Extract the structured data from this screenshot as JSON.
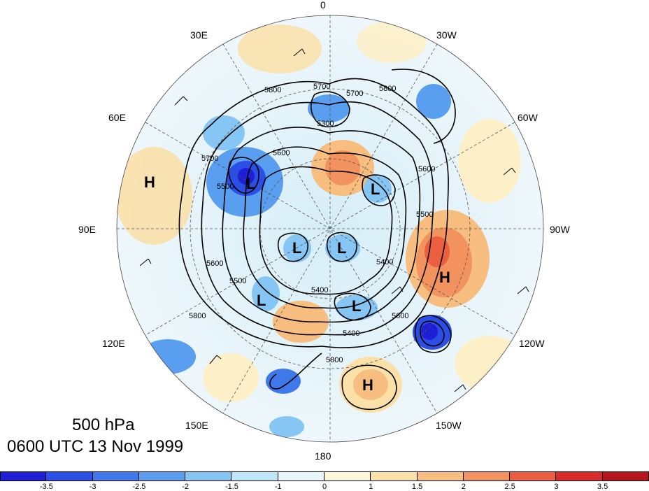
{
  "title": {
    "level": "500 hPa",
    "datetime": "0600 UTC 13 Nov 1999"
  },
  "longitude_labels": {
    "lon_0": "0",
    "lon_30w": "30W",
    "lon_60w": "60W",
    "lon_90w": "90W",
    "lon_120w": "120W",
    "lon_150w": "150W",
    "lon_180": "180",
    "lon_150e": "150E",
    "lon_120e": "120E",
    "lon_90e": "90E",
    "lon_60e": "60E",
    "lon_30e": "30E"
  },
  "pressure_systems": {
    "h1": "H",
    "h2": "H",
    "h3": "H",
    "l1": "L",
    "l2": "L",
    "l3": "L",
    "l4": "L",
    "l5": "L",
    "l6": "L"
  },
  "contour_labels": {
    "c1": "5800",
    "c2": "5700",
    "c3": "5700",
    "c4": "5800",
    "c5": "5600",
    "c6": "5600",
    "c7": "5500",
    "c8": "5500",
    "c9": "5400",
    "c10": "5500",
    "c11": "5400",
    "c12": "5600",
    "c13": "5800",
    "c14": "5700",
    "c15": "5800",
    "c16": "5600",
    "c17": "5400",
    "c18": "5300"
  },
  "colorbar": {
    "colors": [
      "#1e1ed6",
      "#2a4ee6",
      "#3e78ea",
      "#5a9ef0",
      "#86c6f4",
      "#bde6f8",
      "#e6f6fb",
      "#fdf6d8",
      "#fbe0a8",
      "#f7be80",
      "#f2925e",
      "#ec5e40",
      "#d92a2a",
      "#b8141e"
    ],
    "ticks": [
      "-3.5",
      "-3",
      "-2.5",
      "-2",
      "-1.5",
      "-1",
      "0",
      "1",
      "1.5",
      "2",
      "2.5",
      "3",
      "3.5"
    ]
  }
}
